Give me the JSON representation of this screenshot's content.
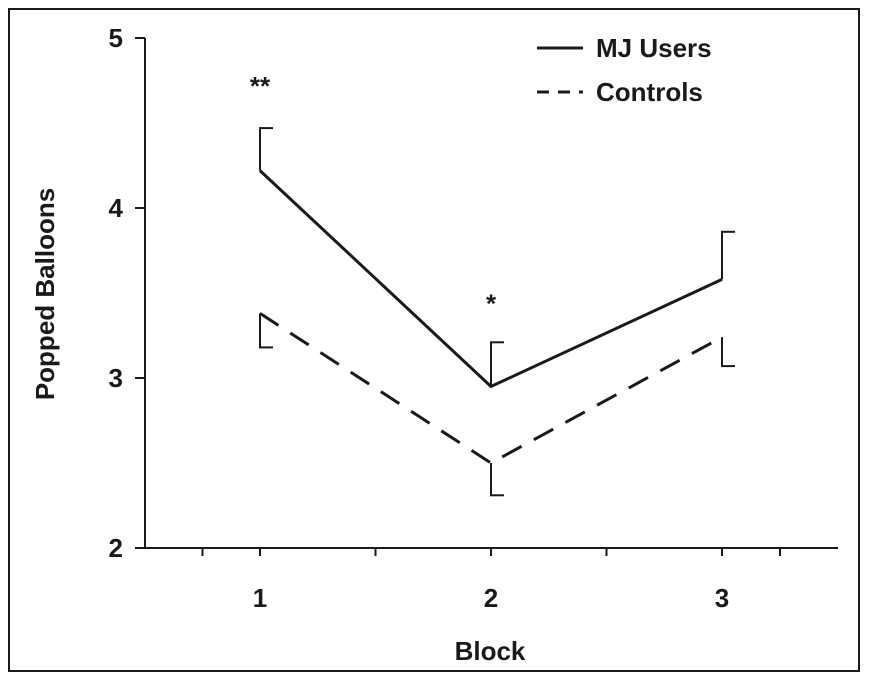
{
  "chart_data": {
    "type": "line",
    "title": "",
    "xlabel": "Block",
    "ylabel": "Popped Balloons",
    "categories": [
      "1",
      "2",
      "3"
    ],
    "ylim": [
      2,
      5
    ],
    "yticks": [
      "2",
      "3",
      "4",
      "5"
    ],
    "grid": false,
    "legend_position": "top-right",
    "series": [
      {
        "name": "MJ Users",
        "style": "solid",
        "color": "#1a1a1a",
        "values": [
          4.22,
          2.95,
          3.58
        ],
        "error_upper": [
          4.47,
          3.21,
          3.86
        ]
      },
      {
        "name": "Controls",
        "style": "dashed",
        "color": "#1a1a1a",
        "values": [
          3.38,
          2.5,
          3.24
        ],
        "error_lower": [
          3.18,
          2.31,
          3.07
        ]
      }
    ],
    "annotations": [
      {
        "category": "1",
        "text": "**",
        "y": 4.76
      },
      {
        "category": "2",
        "text": "*",
        "y": 3.48
      }
    ]
  }
}
